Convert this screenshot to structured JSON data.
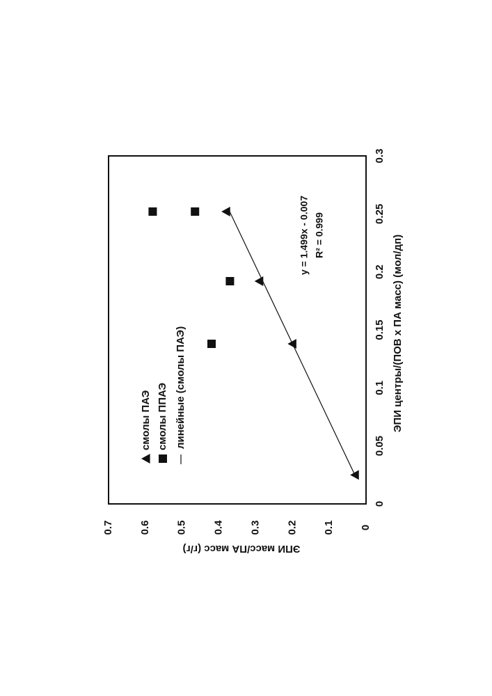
{
  "chart_data": {
    "type": "scatter",
    "rotation_deg": -90,
    "title": "",
    "xlabel": "ЭПИ центры/(ПОВ x ПА масс) (мол/дп)",
    "ylabel": "ЭПИ масс/ПА масс (г/г)",
    "xlim": [
      0,
      0.3
    ],
    "ylim": [
      0,
      0.7
    ],
    "x_ticks": [
      0,
      0.05,
      0.1,
      0.15,
      0.2,
      0.25,
      0.3
    ],
    "x_tick_labels": [
      "0",
      "0.05",
      "0.1",
      "0.15",
      "0.2",
      "0.25",
      "0.3"
    ],
    "y_ticks": [
      0,
      0.1,
      0.2,
      0.3,
      0.4,
      0.5,
      0.6,
      0.7
    ],
    "y_tick_labels": [
      "0",
      "0.1",
      "0.2",
      "0.3",
      "0.4",
      "0.5",
      "0.6",
      "0.7"
    ],
    "grid": false,
    "legend_position": "top-left",
    "series": [
      {
        "name": "смолы ПАЭ",
        "marker": "triangle",
        "color": "#111111",
        "points": [
          [
            0.025,
            0.03
          ],
          [
            0.138,
            0.2
          ],
          [
            0.192,
            0.29
          ],
          [
            0.252,
            0.38
          ]
        ]
      },
      {
        "name": "смолы ППАЭ",
        "marker": "square",
        "color": "#111111",
        "points": [
          [
            0.138,
            0.42
          ],
          [
            0.192,
            0.37
          ],
          [
            0.252,
            0.465
          ],
          [
            0.252,
            0.58
          ]
        ]
      }
    ],
    "trendline": {
      "name": "линейные (смолы ПАЭ)",
      "slope": 1.499,
      "intercept": -0.007,
      "x_range": [
        0.025,
        0.252
      ],
      "equation": "y = 1.499x - 0.007",
      "r_squared": "R² = 0.999"
    }
  }
}
